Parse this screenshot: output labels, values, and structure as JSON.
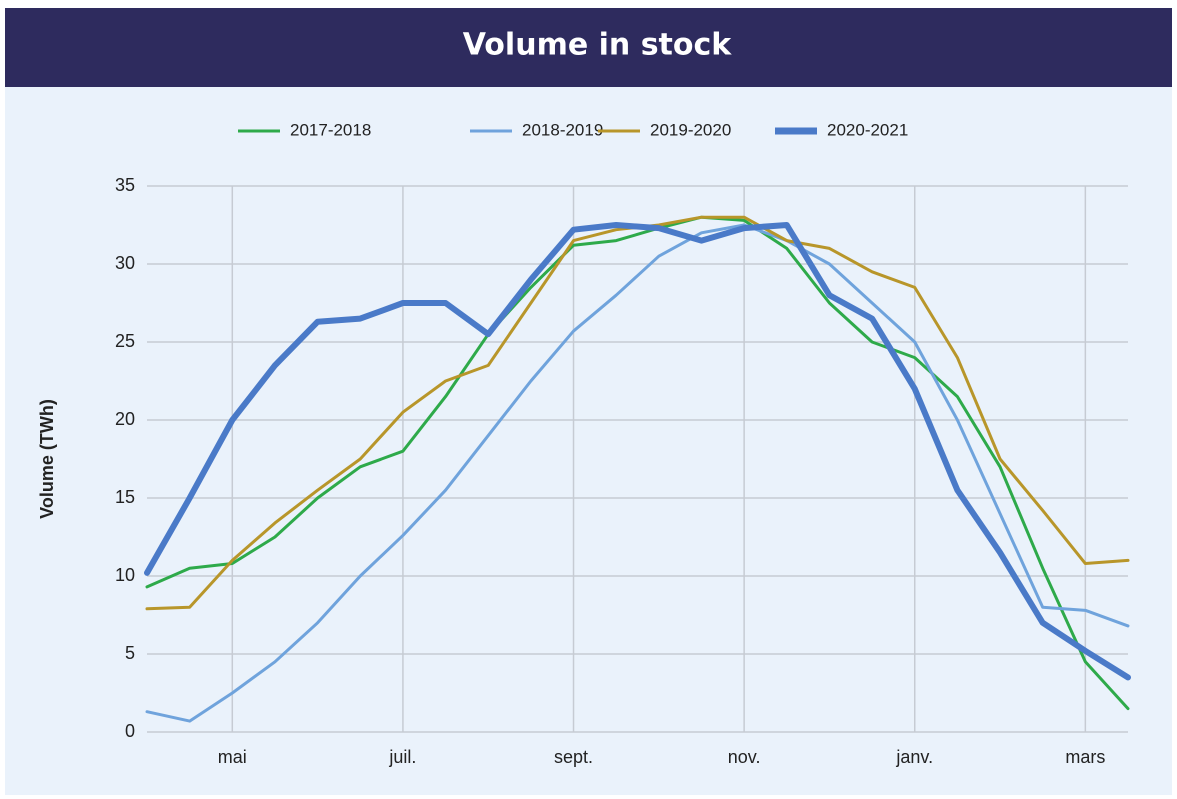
{
  "chart_data": {
    "type": "line",
    "title": "Volume in stock",
    "y_label": "Volume (TWh)",
    "categories": [
      null,
      null,
      "mai",
      null,
      null,
      null,
      "juil.",
      null,
      null,
      null,
      "sept.",
      null,
      null,
      null,
      "nov.",
      null,
      null,
      null,
      "janv.",
      null,
      null,
      null,
      "mars",
      null
    ],
    "series": [
      {
        "name": "2017-2018",
        "color": "#2eaa4a",
        "values": [
          9.3,
          10.5,
          10.8,
          12.5,
          15,
          17,
          18,
          21.5,
          25.5,
          28.5,
          31.2,
          31.5,
          32.3,
          33,
          32.8,
          31,
          27.5,
          25,
          24,
          21.5,
          17,
          10.5,
          4.5,
          1.5
        ]
      },
      {
        "name": "2018-2019",
        "color": "#6fa3dc",
        "values": [
          1.3,
          0.7,
          2.5,
          4.5,
          7,
          10,
          12.6,
          15.5,
          19,
          22.5,
          25.7,
          28,
          30.5,
          32,
          32.5,
          31.5,
          30,
          27.5,
          25,
          20,
          14,
          8,
          7.8,
          6.8
        ]
      },
      {
        "name": "2019-2020",
        "color": "#b8962a",
        "values": [
          7.9,
          8,
          11,
          13.4,
          15.5,
          17.5,
          20.5,
          22.5,
          23.5,
          27.5,
          31.5,
          32.2,
          32.5,
          33,
          33,
          31.5,
          31,
          29.5,
          28.5,
          24,
          17.5,
          14.2,
          10.8,
          11
        ]
      },
      {
        "name": "2020-2021",
        "color": "#4a7ac8",
        "values": [
          10.2,
          15,
          20,
          23.5,
          26.3,
          26.5,
          27.5,
          27.5,
          25.5,
          29,
          32.2,
          32.5,
          32.3,
          31.5,
          32.3,
          32.5,
          28,
          26.5,
          22,
          15.5,
          11.5,
          7,
          5.2,
          3.5
        ]
      }
    ],
    "ylim": [
      0,
      35
    ],
    "yticks": [
      0,
      5,
      10,
      15,
      20,
      25,
      30,
      35
    ],
    "grid": true
  }
}
